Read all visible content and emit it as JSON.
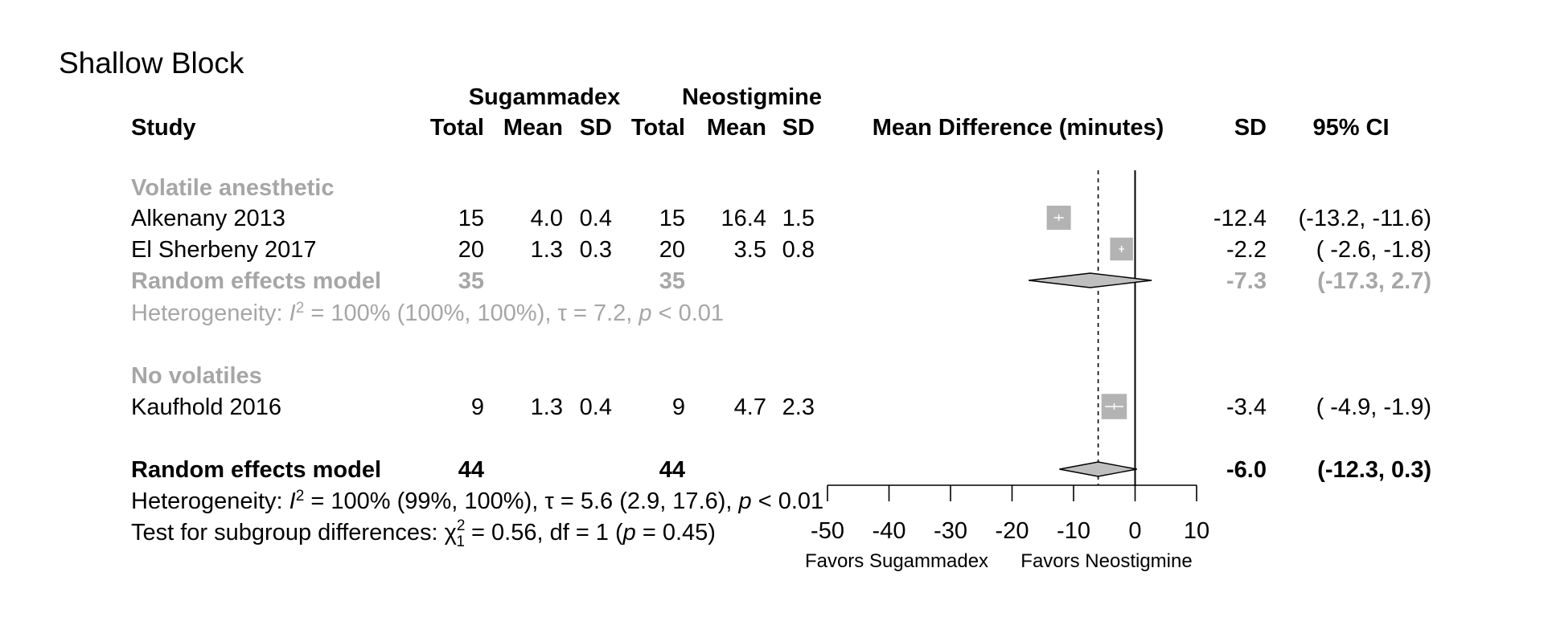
{
  "chart_data": {
    "type": "forest",
    "title": "Shallow Block",
    "group_headers": [
      "Sugammadex",
      "Neostigmine"
    ],
    "column_headers": {
      "study": "Study",
      "total": "Total",
      "mean": "Mean",
      "sd": "SD",
      "effect": "Mean Difference (minutes)",
      "md_sd": "SD",
      "ci": "95% CI"
    },
    "colors": {
      "study": "#b3b3b3",
      "subgroup_text": "#a6a6a6",
      "diamond_fill": "#bfbfbf",
      "main": "#000000"
    },
    "subgroups": [
      {
        "name": "Volatile anesthetic",
        "studies": [
          {
            "study": "Alkenany 2013",
            "sug_total": "15",
            "sug_mean": "4.0",
            "sug_sd": "0.4",
            "neo_total": "15",
            "neo_mean": "16.4",
            "neo_sd": "1.5",
            "md": -12.4,
            "lo": -13.2,
            "hi": -11.6,
            "weight": 1.0,
            "md_text": "-12.4",
            "ci_text": "(-13.2, -11.6)"
          },
          {
            "study": "El Sherbeny 2017",
            "sug_total": "20",
            "sug_mean": "1.3",
            "sug_sd": "0.3",
            "neo_total": "20",
            "neo_mean": "3.5",
            "neo_sd": "0.8",
            "md": -2.2,
            "lo": -2.6,
            "hi": -1.8,
            "weight": 0.95,
            "md_text": "-2.2",
            "ci_text": "( -2.6, -1.8)"
          }
        ],
        "model": {
          "label": "Random effects model",
          "sug_total": "35",
          "neo_total": "35",
          "md": -7.3,
          "lo": -17.3,
          "hi": 2.7,
          "md_text": "-7.3",
          "ci_text": "(-17.3, 2.7)"
        },
        "heterogeneity": {
          "prefix": "Heterogeneity: ",
          "i": "I",
          "sup": "2",
          "rest1": " = 100% (100%, 100%), τ = 7.2, ",
          "p": "p",
          "rest2": " < 0.01"
        }
      },
      {
        "name": "No volatiles",
        "studies": [
          {
            "study": "Kaufhold 2016",
            "sug_total": "9",
            "sug_mean": "1.3",
            "sug_sd": "0.4",
            "neo_total": "9",
            "neo_mean": "4.7",
            "neo_sd": "2.3",
            "md": -3.4,
            "lo": -4.9,
            "hi": -1.9,
            "weight": 1.05,
            "md_text": "-3.4",
            "ci_text": "( -4.9, -1.9)"
          }
        ]
      }
    ],
    "overall": {
      "label": "Random effects model",
      "sug_total": "44",
      "neo_total": "44",
      "md": -6.0,
      "lo": -12.3,
      "hi": 0.3,
      "md_text": "-6.0",
      "ci_text": "(-12.3, 0.3)",
      "heterogeneity": {
        "prefix": "Heterogeneity: ",
        "i": "I",
        "sup": "2",
        "rest1": " = 100% (99%, 100%), τ = 5.6 (2.9, 17.6), ",
        "p": "p",
        "rest2": " < 0.01"
      },
      "subgroup_test": {
        "prefix": "Test for subgroup differences: ",
        "chi": "χ",
        "sup": "2",
        "sub": "1",
        "rest1": " = 0.56, df = 1 (",
        "p": "p",
        "rest2": " = 0.45)"
      }
    },
    "x_axis": {
      "min": -50,
      "max": 10,
      "ticks": [
        -50,
        -40,
        -30,
        -20,
        -10,
        0,
        10
      ],
      "reference_line": 0,
      "left_label": "Favors Sugammadex",
      "right_label": "Favors Neostigmine"
    }
  }
}
